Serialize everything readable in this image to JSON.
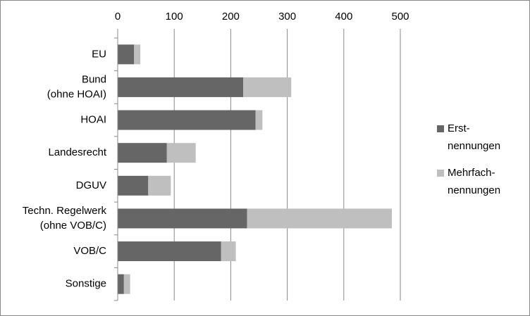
{
  "chart_data": {
    "type": "stacked-barh",
    "categories": [
      [
        "EU"
      ],
      [
        "Bund",
        "(ohne HOAI)"
      ],
      [
        "HOAI"
      ],
      [
        "Landesrecht"
      ],
      [
        "DGUV"
      ],
      [
        "Techn. Regelwerk",
        "(ohne VOB/C)"
      ],
      [
        "VOB/C"
      ],
      [
        "Sonstige"
      ]
    ],
    "series": [
      {
        "name": [
          "Erst-",
          "nennungen"
        ],
        "color": "#666666",
        "values": [
          29,
          222,
          244,
          87,
          54,
          229,
          183,
          11
        ]
      },
      {
        "name": [
          "Mehrfach-",
          "nennungen"
        ],
        "color": "#bfbfbf",
        "values": [
          11,
          85,
          12,
          51,
          40,
          256,
          26,
          11
        ]
      }
    ],
    "xlim": [
      0,
      500
    ],
    "xticks": [
      0,
      100,
      200,
      300,
      400,
      500
    ],
    "grid": true,
    "legend": "right"
  }
}
